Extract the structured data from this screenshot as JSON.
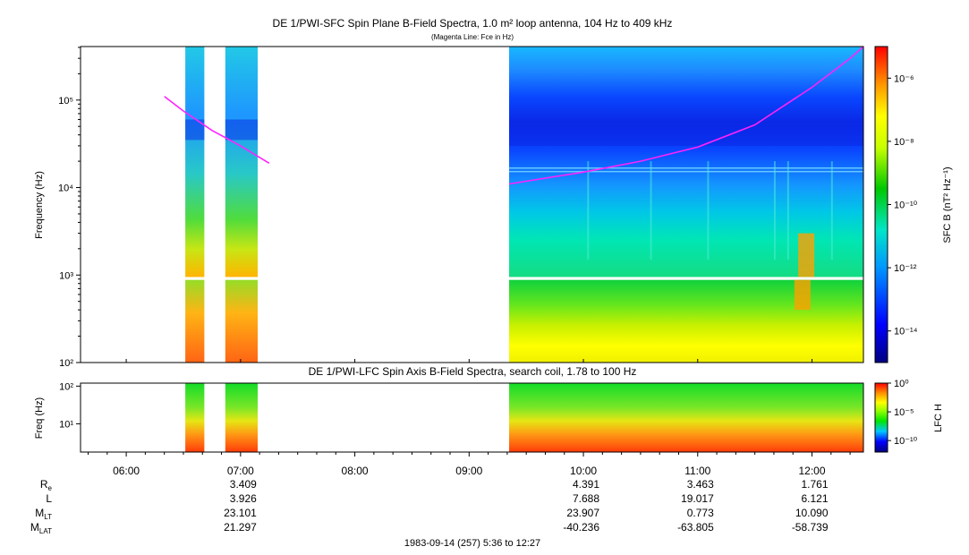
{
  "chart_data": [
    {
      "type": "heatmap",
      "title": "DE 1/PWI-SFC  Spin Plane B-Field Spectra, 1.0 m² loop antenna, 104 Hz to 409 kHz",
      "subtitle": "(Magenta Line: Fce in Hz)",
      "ylabel": "Frequency (Hz)",
      "y_scale": "log",
      "ylim": [
        100,
        409000
      ],
      "y_ticks": [
        {
          "v": 100,
          "label": "10²"
        },
        {
          "v": 1000,
          "label": "10³"
        },
        {
          "v": 10000,
          "label": "10⁴"
        },
        {
          "v": 100000,
          "label": "10⁵"
        }
      ],
      "colorbar": {
        "label": "SFC B (nT² Hz⁻¹)",
        "scale": "log",
        "range": [
          1e-15,
          1e-05
        ],
        "ticks": [
          {
            "v": 1e-06,
            "label": "10⁻⁶"
          },
          {
            "v": 1e-08,
            "label": "10⁻⁸"
          },
          {
            "v": 1e-10,
            "label": "10⁻¹⁰"
          },
          {
            "v": 1e-12,
            "label": "10⁻¹²"
          },
          {
            "v": 1e-14,
            "label": "10⁻¹⁴"
          }
        ]
      },
      "data_intervals": [
        [
          "06:31",
          "06:41"
        ],
        [
          "06:52",
          "07:09"
        ],
        [
          "09:21",
          "12:27"
        ]
      ],
      "fce_line": {
        "color": "#ff22ff",
        "segments": [
          [
            [
              "06:20",
              110000
            ],
            [
              "06:30",
              75000
            ],
            [
              "06:45",
              45000
            ],
            [
              "07:00",
              30000
            ],
            [
              "07:15",
              19000
            ]
          ],
          [
            [
              "09:21",
              11000
            ],
            [
              "10:00",
              15000
            ],
            [
              "10:30",
              20000
            ],
            [
              "11:00",
              29000
            ],
            [
              "11:30",
              52000
            ],
            [
              "12:00",
              140000
            ],
            [
              "12:20",
              300000
            ],
            [
              "12:27",
              409000
            ]
          ]
        ]
      }
    },
    {
      "type": "heatmap",
      "title": "DE 1/PWI-LFC  Spin Axis B-Field Spectra, search coil, 1.78 to 100 Hz",
      "ylabel": "Freq (Hz)",
      "y_scale": "log",
      "ylim": [
        1.78,
        120
      ],
      "y_ticks": [
        {
          "v": 10,
          "label": "10¹"
        },
        {
          "v": 100,
          "label": "10²"
        }
      ],
      "colorbar": {
        "label": "LFC H",
        "scale": "log",
        "range": [
          1e-12,
          1
        ],
        "ticks": [
          {
            "v": 1,
            "label": "10⁰"
          },
          {
            "v": 1e-05,
            "label": "10⁻⁵"
          },
          {
            "v": 1e-10,
            "label": "10⁻¹⁰"
          }
        ]
      },
      "data_intervals": [
        [
          "06:31",
          "06:41"
        ],
        [
          "06:52",
          "07:09"
        ],
        [
          "09:21",
          "12:27"
        ]
      ]
    }
  ],
  "time_axis": {
    "start": "05:36",
    "end": "12:27",
    "ticks": [
      "06:00",
      "07:00",
      "08:00",
      "09:00",
      "10:00",
      "11:00",
      "12:00"
    ]
  },
  "ephemeris": {
    "rows": [
      {
        "key": "re",
        "label": "R",
        "sub": "e"
      },
      {
        "key": "l",
        "label": "L",
        "sub": ""
      },
      {
        "key": "mlt",
        "label": "M",
        "sub": "LT"
      },
      {
        "key": "mlat",
        "label": "M",
        "sub": "LAT"
      }
    ],
    "columns": [
      {
        "time": "07:00",
        "re": "3.409",
        "l": "3.926",
        "mlt": "23.101",
        "mlat": "21.297"
      },
      {
        "time": "10:00",
        "re": "4.391",
        "l": "7.688",
        "mlt": "23.907",
        "mlat": "-40.236"
      },
      {
        "time": "11:00",
        "re": "3.463",
        "l": "19.017",
        "mlt": "0.773",
        "mlat": "-63.805"
      },
      {
        "time": "12:00",
        "re": "1.761",
        "l": "6.121",
        "mlt": "10.090",
        "mlat": "-58.739"
      }
    ]
  },
  "footer": "1983-09-14 (257) 5:36 to 12:27"
}
